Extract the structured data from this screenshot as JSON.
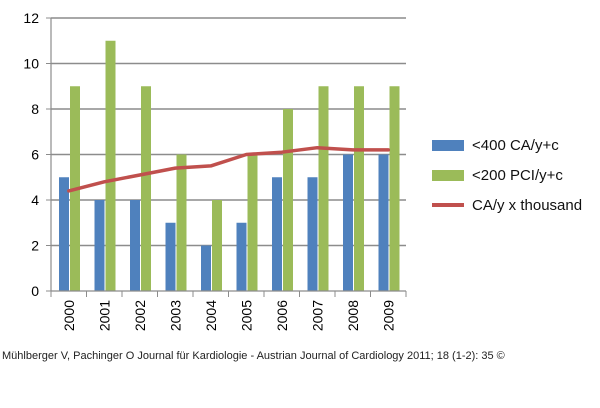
{
  "chart_data": {
    "type": "bar",
    "categories": [
      "2000",
      "2001",
      "2002",
      "2003",
      "2004",
      "2005",
      "2006",
      "2007",
      "2008",
      "2009"
    ],
    "series": [
      {
        "name": "<400 CA/y+c",
        "type": "bar",
        "color": "#4f81bd",
        "values": [
          5,
          4,
          4,
          3,
          2,
          3,
          5,
          5,
          6,
          6
        ]
      },
      {
        "name": "<200 PCI/y+c",
        "type": "bar",
        "color": "#9bbb59",
        "values": [
          9,
          11,
          9,
          6,
          4,
          6,
          8,
          9,
          9,
          9
        ]
      },
      {
        "name": "CA/y x thousand",
        "type": "line",
        "color": "#c0504d",
        "values": [
          4.4,
          4.8,
          5.1,
          5.4,
          5.5,
          6.0,
          6.1,
          6.3,
          6.2,
          6.2
        ]
      }
    ],
    "ylim": [
      0,
      12
    ],
    "yticks": [
      "0",
      "2",
      "4",
      "6",
      "8",
      "10",
      "12"
    ],
    "grid": true,
    "legend": "right",
    "xlabel": "",
    "ylabel": ""
  },
  "caption": "Mühlberger V, Pachinger O Journal für Kardiologie - Austrian Journal of Cardiology 2011; 18 (1-2): 35 ©"
}
